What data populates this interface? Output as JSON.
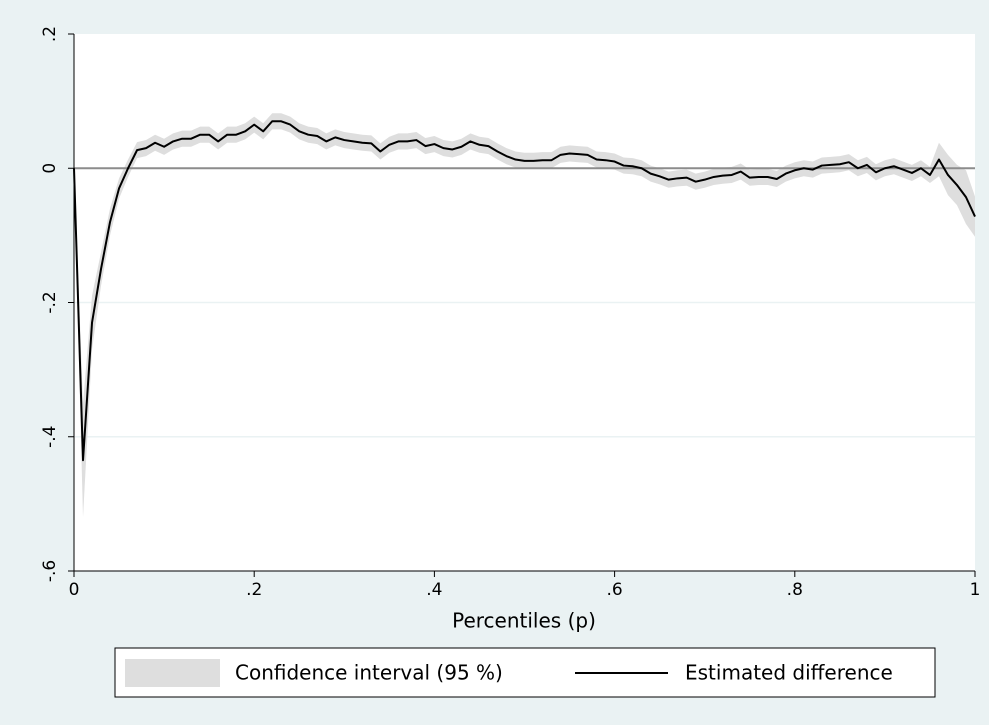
{
  "chart_data": {
    "type": "line",
    "x_label": "Percentiles (p)",
    "x": [
      0,
      0.01,
      0.02,
      0.03,
      0.04,
      0.05,
      0.06,
      0.07,
      0.08,
      0.09,
      0.1,
      0.11,
      0.12,
      0.13,
      0.14,
      0.15,
      0.16,
      0.17,
      0.18,
      0.19,
      0.2,
      0.21,
      0.22,
      0.23,
      0.24,
      0.25,
      0.26,
      0.27,
      0.28,
      0.29,
      0.3,
      0.31,
      0.32,
      0.33,
      0.34,
      0.35,
      0.36,
      0.37,
      0.38,
      0.39,
      0.4,
      0.41,
      0.42,
      0.43,
      0.44,
      0.45,
      0.46,
      0.47,
      0.48,
      0.49,
      0.5,
      0.51,
      0.52,
      0.53,
      0.54,
      0.55,
      0.56,
      0.57,
      0.58,
      0.59,
      0.6,
      0.61,
      0.62,
      0.63,
      0.64,
      0.65,
      0.66,
      0.67,
      0.68,
      0.69,
      0.7,
      0.71,
      0.72,
      0.73,
      0.74,
      0.75,
      0.76,
      0.77,
      0.78,
      0.79,
      0.8,
      0.81,
      0.82,
      0.83,
      0.84,
      0.85,
      0.86,
      0.87,
      0.88,
      0.89,
      0.9,
      0.91,
      0.92,
      0.93,
      0.94,
      0.95,
      0.96,
      0.97,
      0.98,
      0.99,
      1
    ],
    "series": [
      {
        "name": "Confidence interval (95 %)",
        "color": "#dedede",
        "lower": [
          -0.005,
          -0.52,
          -0.27,
          -0.175,
          -0.1,
          -0.045,
          -0.013,
          0.015,
          0.018,
          0.026,
          0.02,
          0.028,
          0.032,
          0.032,
          0.038,
          0.038,
          0.028,
          0.038,
          0.038,
          0.043,
          0.053,
          0.043,
          0.058,
          0.058,
          0.053,
          0.043,
          0.038,
          0.036,
          0.028,
          0.034,
          0.03,
          0.028,
          0.026,
          0.025,
          0.013,
          0.023,
          0.028,
          0.028,
          0.03,
          0.021,
          0.024,
          0.018,
          0.016,
          0.02,
          0.028,
          0.023,
          0.021,
          0.013,
          0.006,
          0.001,
          -0.001,
          -0.001,
          0,
          0,
          0.008,
          0.01,
          0.009,
          0.008,
          0.001,
          0,
          -0.002,
          -0.008,
          -0.009,
          -0.012,
          -0.02,
          -0.024,
          -0.029,
          -0.027,
          -0.026,
          -0.032,
          -0.029,
          -0.025,
          -0.023,
          -0.022,
          -0.017,
          -0.026,
          -0.025,
          -0.025,
          -0.028,
          -0.02,
          -0.015,
          -0.012,
          -0.014,
          -0.008,
          -0.007,
          -0.006,
          -0.003,
          -0.012,
          -0.007,
          -0.018,
          -0.012,
          -0.009,
          -0.014,
          -0.019,
          -0.012,
          -0.022,
          -0.012,
          -0.04,
          -0.055,
          -0.083,
          -0.102
        ],
        "upper": [
          0.005,
          -0.35,
          -0.19,
          -0.125,
          -0.06,
          -0.015,
          0.013,
          0.039,
          0.042,
          0.05,
          0.044,
          0.052,
          0.056,
          0.056,
          0.062,
          0.062,
          0.052,
          0.062,
          0.062,
          0.067,
          0.077,
          0.067,
          0.082,
          0.082,
          0.077,
          0.067,
          0.062,
          0.06,
          0.052,
          0.058,
          0.054,
          0.052,
          0.05,
          0.049,
          0.037,
          0.047,
          0.052,
          0.052,
          0.054,
          0.045,
          0.048,
          0.042,
          0.04,
          0.044,
          0.052,
          0.047,
          0.045,
          0.037,
          0.03,
          0.025,
          0.023,
          0.023,
          0.024,
          0.024,
          0.032,
          0.034,
          0.033,
          0.032,
          0.025,
          0.024,
          0.022,
          0.016,
          0.015,
          0.012,
          0.004,
          0,
          -0.005,
          -0.003,
          -0.002,
          -0.008,
          -0.005,
          -0.001,
          0.001,
          0.002,
          0.007,
          -0.002,
          -0.001,
          -0.001,
          -0.004,
          0.004,
          0.009,
          0.012,
          0.01,
          0.016,
          0.017,
          0.018,
          0.021,
          0.012,
          0.017,
          0.006,
          0.012,
          0.015,
          0.01,
          0.005,
          0.012,
          0.002,
          0.038,
          0.02,
          0.005,
          -0.003,
          -0.042
        ]
      },
      {
        "name": "Estimated difference",
        "color": "#000000",
        "values": [
          0,
          -0.435,
          -0.23,
          -0.15,
          -0.08,
          -0.03,
          0,
          0.027,
          0.03,
          0.038,
          0.032,
          0.04,
          0.044,
          0.044,
          0.05,
          0.05,
          0.04,
          0.05,
          0.05,
          0.055,
          0.065,
          0.055,
          0.07,
          0.07,
          0.065,
          0.055,
          0.05,
          0.048,
          0.04,
          0.046,
          0.042,
          0.04,
          0.038,
          0.037,
          0.025,
          0.035,
          0.04,
          0.04,
          0.042,
          0.033,
          0.036,
          0.03,
          0.028,
          0.032,
          0.04,
          0.035,
          0.033,
          0.025,
          0.018,
          0.013,
          0.011,
          0.011,
          0.012,
          0.012,
          0.02,
          0.022,
          0.021,
          0.02,
          0.013,
          0.012,
          0.01,
          0.004,
          0.003,
          0,
          -0.008,
          -0.012,
          -0.017,
          -0.015,
          -0.014,
          -0.02,
          -0.017,
          -0.013,
          -0.011,
          -0.01,
          -0.005,
          -0.014,
          -0.013,
          -0.013,
          -0.016,
          -0.008,
          -0.003,
          0,
          -0.002,
          0.004,
          0.005,
          0.006,
          0.009,
          0,
          0.005,
          -0.006,
          0,
          0.003,
          -0.002,
          -0.007,
          0,
          -0.01,
          0.013,
          -0.01,
          -0.025,
          -0.043,
          -0.072
        ]
      }
    ],
    "xlim": [
      0,
      1
    ],
    "xticks": [
      0,
      {
        "value": 0.2,
        "label": ".2"
      },
      {
        "value": 0.4,
        "label": ".4"
      },
      {
        "value": 0.6,
        "label": ".6"
      },
      {
        "value": 0.8,
        "label": ".8"
      },
      1
    ],
    "ylim": [
      -0.6,
      0.2
    ],
    "yticks": [
      {
        "value": -0.6,
        "label": "-.6"
      },
      {
        "value": -0.4,
        "label": "-.4"
      },
      {
        "value": -0.2,
        "label": "-.2"
      },
      0,
      {
        "value": 0.2,
        "label": ".2"
      }
    ],
    "grid": true,
    "reference_line": 0,
    "legend": "bottom"
  }
}
